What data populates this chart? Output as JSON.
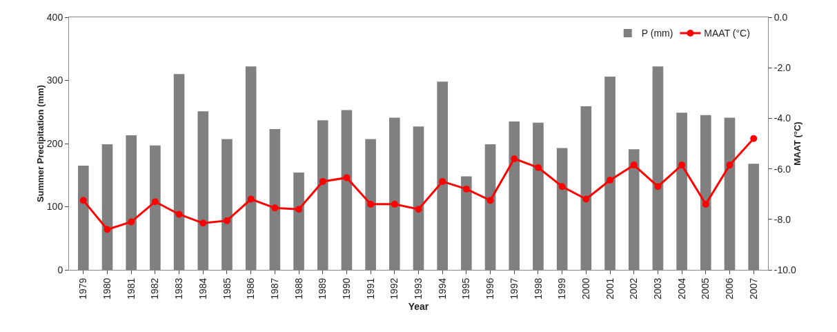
{
  "chart_data": {
    "type": "bar",
    "xlabel": "Year",
    "ylabel": "Summer Precipitation (mm)",
    "y2label": "MAAT (°C)",
    "categories": [
      "1979",
      "1980",
      "1981",
      "1982",
      "1983",
      "1984",
      "1985",
      "1986",
      "1987",
      "1988",
      "1989",
      "1990",
      "1991",
      "1992",
      "1993",
      "1994",
      "1995",
      "1996",
      "1997",
      "1998",
      "1999",
      "2000",
      "2001",
      "2002",
      "2003",
      "2004",
      "2005",
      "2006",
      "2007"
    ],
    "series": [
      {
        "name": "P (mm)",
        "color": "#808080",
        "values": [
          165,
          199,
          213,
          197,
          310,
          251,
          207,
          322,
          223,
          154,
          237,
          253,
          207,
          241,
          227,
          298,
          148,
          199,
          235,
          233,
          193,
          259,
          306,
          191,
          322,
          249,
          245,
          241,
          168
        ]
      },
      {
        "name": "MAAT (°C)",
        "type": "line",
        "axis": "y2",
        "color": "#ff0000",
        "marker": "circle",
        "values": [
          -7.25,
          -8.4,
          -8.1,
          -7.3,
          -7.8,
          -8.15,
          -8.05,
          -7.2,
          -7.55,
          -7.6,
          -6.5,
          -6.35,
          -7.4,
          -7.4,
          -7.6,
          -6.5,
          -6.8,
          -7.25,
          -5.6,
          -5.95,
          -6.7,
          -7.2,
          -6.45,
          -5.85,
          -6.7,
          -5.85,
          -7.4,
          -5.85,
          -4.8
        ]
      }
    ],
    "ylim": [
      0,
      400
    ],
    "yticks": [
      0,
      100,
      200,
      300,
      400
    ],
    "y2lim": [
      -10,
      0
    ],
    "y2ticks": [
      {
        "value": -10,
        "label": "-10.0"
      },
      {
        "value": -8,
        "label": "-8.0"
      },
      {
        "value": -6,
        "label": "-6.0"
      },
      {
        "value": -4,
        "label": "-4.0"
      },
      {
        "value": -2,
        "label": "-2.0"
      },
      {
        "value": 0,
        "label": "0.0"
      }
    ],
    "grid": false,
    "legend": "top right"
  }
}
